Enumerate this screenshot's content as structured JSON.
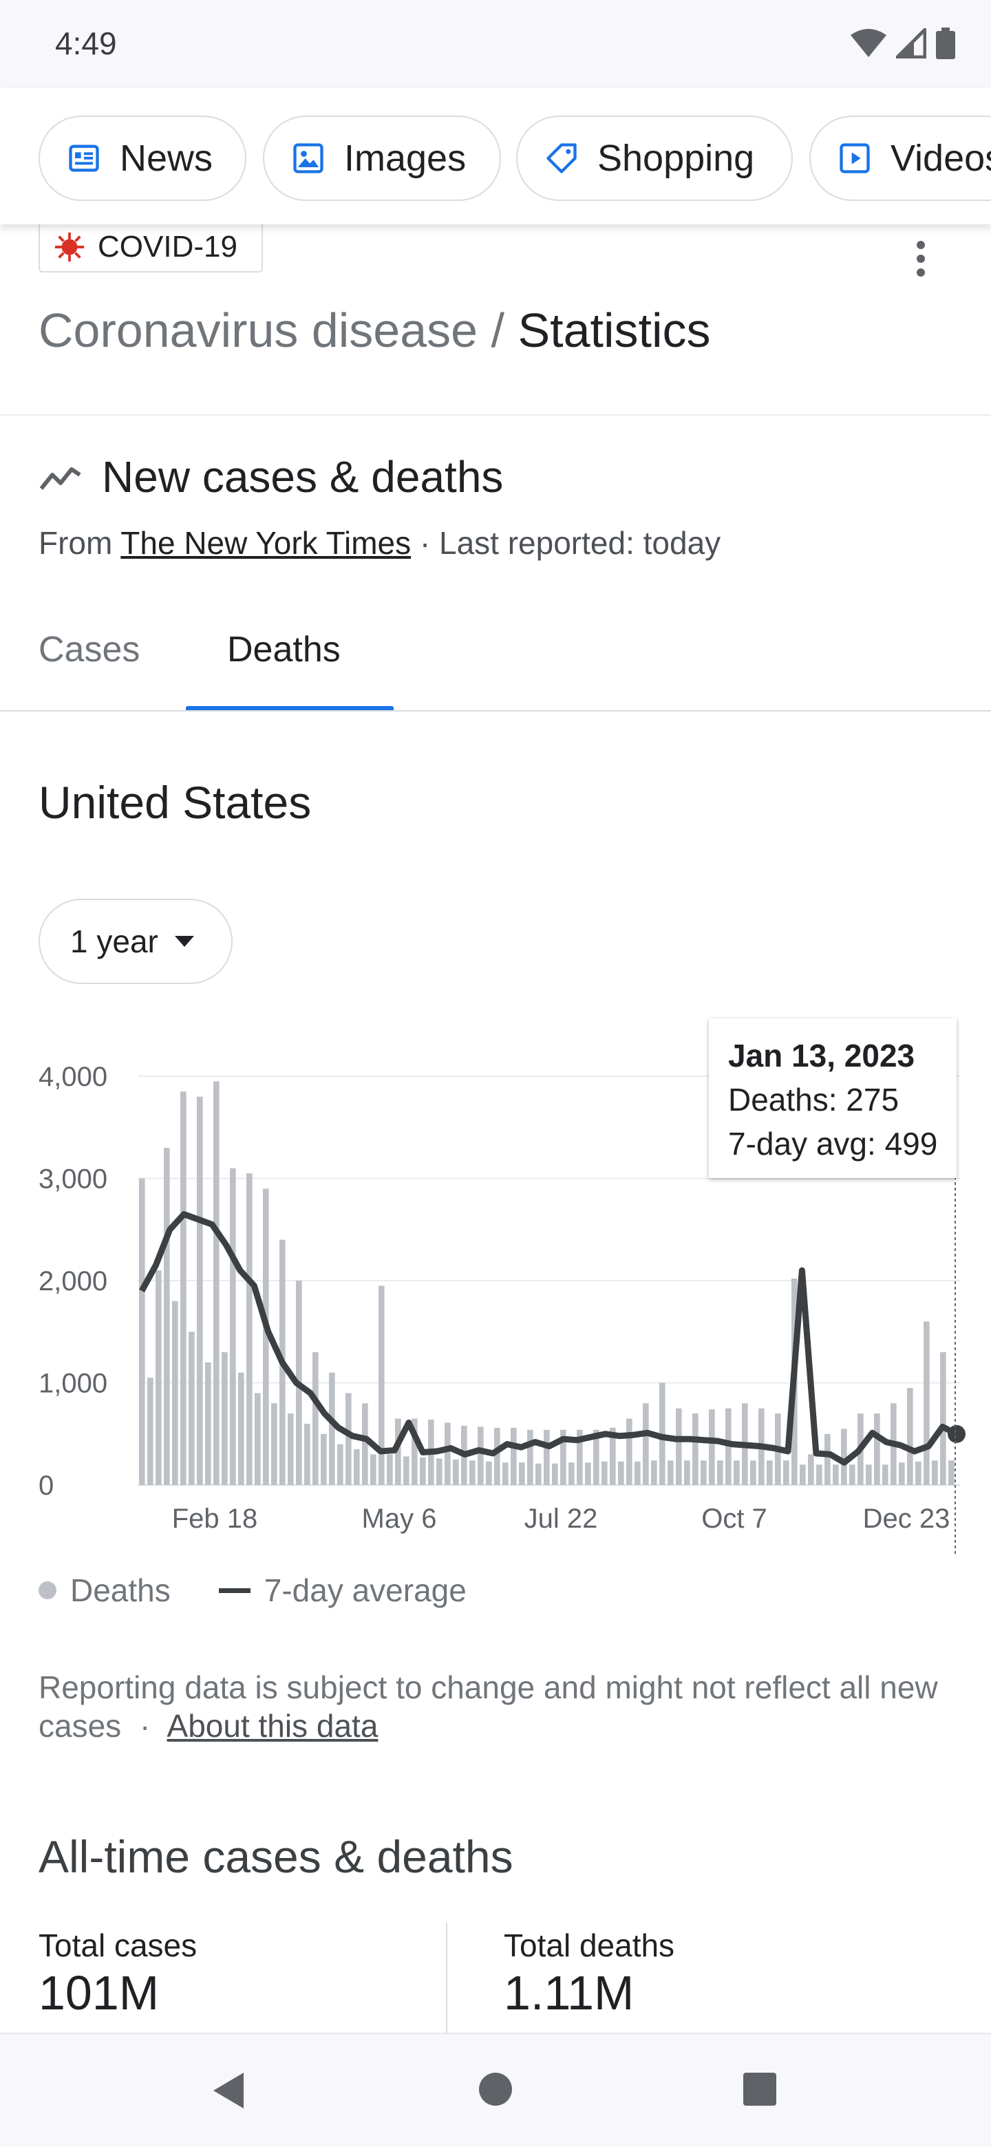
{
  "status_bar": {
    "time": "4:49"
  },
  "chips": [
    {
      "label": "News",
      "icon": "news-icon"
    },
    {
      "label": "Images",
      "icon": "image-icon"
    },
    {
      "label": "Shopping",
      "icon": "tag-icon"
    },
    {
      "label": "Videos",
      "icon": "play-icon"
    }
  ],
  "header": {
    "tag": "COVID-19",
    "breadcrumb_parent": "Coronavirus disease /",
    "breadcrumb_current": "Statistics"
  },
  "section": {
    "title": "New cases & deaths",
    "source_prefix": "From",
    "source_name": "The New York Times",
    "last_reported": "· Last reported: today"
  },
  "tabs": {
    "cases": "Cases",
    "deaths": "Deaths",
    "selected": "Deaths"
  },
  "region": "United States",
  "range": {
    "selected": "1 year"
  },
  "tooltip": {
    "date": "Jan 13, 2023",
    "deaths": "Deaths: 275",
    "avg": "7-day avg: 499"
  },
  "legend": {
    "deaths": "Deaths",
    "avg": "7-day average"
  },
  "disclaimer": {
    "text": "Reporting data is subject to change and might not reflect all new cases",
    "separator": "·",
    "link": "About this data"
  },
  "all_time": {
    "title": "All-time cases & deaths",
    "cases_label": "Total cases",
    "cases_value": "101M",
    "deaths_label": "Total deaths",
    "deaths_value": "1.11M"
  },
  "colors": {
    "accent": "#1a73e8",
    "bars": "#bdc1c6",
    "avg_line": "#3c4043",
    "covid_red": "#d93025"
  },
  "chart_data": {
    "type": "bar",
    "xtick_labels": [
      "Feb 18",
      "May 6",
      "Jul 22",
      "Oct 7",
      "Dec 23"
    ],
    "ytick_labels": [
      "4,000",
      "3,000",
      "2,000",
      "1,000",
      "0"
    ],
    "ylim": [
      0,
      4000
    ],
    "grid": true,
    "series": [
      {
        "name": "Deaths",
        "kind": "bars",
        "values": [
          3000,
          1050,
          2100,
          3300,
          1800,
          3850,
          1500,
          3800,
          1200,
          3950,
          1300,
          3100,
          1100,
          3050,
          900,
          2900,
          800,
          2400,
          700,
          2000,
          600,
          1300,
          500,
          1100,
          400,
          900,
          350,
          800,
          300,
          1950,
          300,
          650,
          280,
          650,
          270,
          640,
          260,
          610,
          250,
          580,
          240,
          570,
          230,
          560,
          220,
          560,
          220,
          540,
          210,
          540,
          210,
          540,
          220,
          540,
          220,
          540,
          230,
          560,
          230,
          650,
          230,
          800,
          240,
          1000,
          240,
          750,
          240,
          700,
          240,
          740,
          240,
          750,
          240,
          800,
          240,
          750,
          240,
          700,
          240,
          2020,
          200,
          300,
          200,
          500,
          200,
          550,
          200,
          700,
          200,
          700,
          200,
          800,
          220,
          950,
          230,
          1600,
          240,
          1300,
          240
        ]
      },
      {
        "name": "7-day average",
        "kind": "line",
        "values": [
          1900,
          2150,
          2500,
          2650,
          2600,
          2550,
          2350,
          2100,
          1950,
          1500,
          1200,
          1000,
          900,
          700,
          560,
          480,
          450,
          330,
          340,
          610,
          320,
          330,
          360,
          300,
          340,
          310,
          400,
          370,
          420,
          380,
          450,
          440,
          470,
          500,
          480,
          490,
          510,
          470,
          450,
          450,
          440,
          430,
          400,
          390,
          380,
          360,
          330,
          2100,
          310,
          300,
          220,
          330,
          510,
          420,
          390,
          330,
          380,
          570,
          499
        ]
      }
    ]
  }
}
